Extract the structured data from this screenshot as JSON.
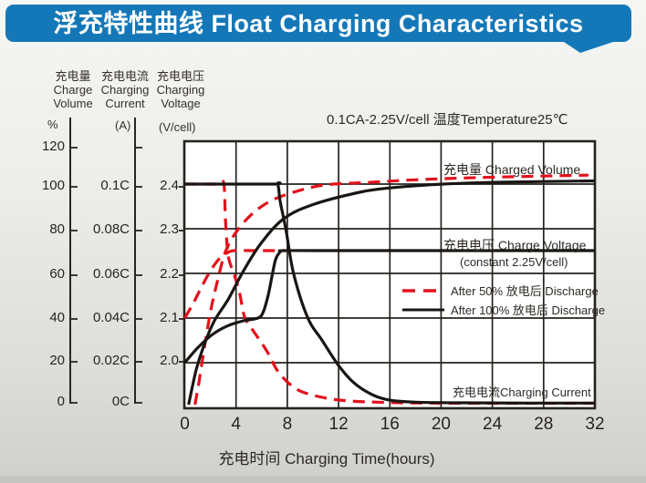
{
  "title": "浮充特性曲线 Float Charging Characteristics",
  "axis_headers": {
    "volume": {
      "l1": "充电量",
      "l2": "Charge",
      "l3": "Volume",
      "unit": "%"
    },
    "current": {
      "l1": "充电电流",
      "l2": "Charging",
      "l3": "Current",
      "unit": "(A)"
    },
    "voltage": {
      "l1": "充电电压",
      "l2": "Charging",
      "l3": "Voltage",
      "unit": "(V/cell)"
    }
  },
  "colors": {
    "accent_blue": "#1478b8",
    "curve_red": "#e3101c",
    "curve_black": "#191613"
  },
  "chart_data": {
    "type": "line",
    "title": "浮充特性曲线 Float Charging Characteristics",
    "condition": "0.1CA-2.25V/cell  温度Temperature25℃",
    "x": {
      "label": "充电时间 Charging Time(hours)",
      "unit": "hours",
      "range": [
        0,
        32
      ],
      "ticks": [
        "0",
        "4",
        "8",
        "12",
        "16",
        "20",
        "24",
        "28",
        "32"
      ]
    },
    "y_axes": {
      "volume": {
        "label": "充电量 Charge Volume",
        "unit": "%",
        "ticks": [
          "120",
          "100",
          "80",
          "60",
          "40",
          "20",
          "0"
        ]
      },
      "current": {
        "label": "充电电流 Charging Current",
        "unit": "A",
        "ticks": [
          "0.1C",
          "0.08C",
          "0.06C",
          "0.04C",
          "0.02C",
          "0C"
        ]
      },
      "voltage": {
        "label": "充电电压 Charging Voltage",
        "unit": "V/cell",
        "ticks": [
          "2.4",
          "2.3",
          "2.2",
          "2.1",
          "2.0"
        ],
        "gridline_values": [
          2.4,
          2.3,
          2.2,
          2.1,
          2.0
        ]
      }
    },
    "annotations": {
      "charged_volume": "充电量 Charged Volume",
      "charge_voltage": "充电电压 Charge Voltage",
      "charge_voltage_sub": "(constant 2.25V/cell)",
      "charging_current": "充电电流Charging Current"
    },
    "legend": [
      {
        "label": "After 50%  放电后 Discharge",
        "style": "dashed-red"
      },
      {
        "label": "After 100%  放电后 Discharge",
        "style": "solid-black"
      }
    ],
    "series": [
      {
        "name": "Charged Volume - After 50% discharge",
        "axis": "volume",
        "style": "dashed-red",
        "points": [
          [
            0.8,
            0
          ],
          [
            1.1,
            10
          ],
          [
            1.5,
            25
          ],
          [
            2.0,
            42
          ],
          [
            2.5,
            55
          ],
          [
            3.2,
            70
          ],
          [
            4.2,
            80
          ],
          [
            5.5,
            88
          ],
          [
            7,
            93.5
          ],
          [
            9,
            97.5
          ],
          [
            11,
            100
          ],
          [
            14,
            101
          ],
          [
            18,
            102.3
          ],
          [
            23,
            103.3
          ],
          [
            28,
            104
          ],
          [
            31.5,
            104.4
          ]
        ]
      },
      {
        "name": "Charged Volume - After 100% discharge",
        "axis": "volume",
        "style": "solid-black",
        "points": [
          [
            0.3,
            0
          ],
          [
            0.9,
            16
          ],
          [
            1.5,
            27
          ],
          [
            2.3,
            38
          ],
          [
            3.4,
            48
          ],
          [
            4.5,
            60
          ],
          [
            5.9,
            73
          ],
          [
            7.7,
            84.5
          ],
          [
            10,
            91
          ],
          [
            13.8,
            96.8
          ],
          [
            16.4,
            98.8
          ],
          [
            20,
            100.3
          ],
          [
            25,
            101.2
          ],
          [
            32,
            101.8
          ]
        ]
      },
      {
        "name": "Charge Voltage - After 50% discharge",
        "axis": "voltage",
        "style": "dashed-red",
        "points": [
          [
            0,
            2.1
          ],
          [
            0.7,
            2.135
          ],
          [
            1.4,
            2.175
          ],
          [
            2.1,
            2.21
          ],
          [
            2.7,
            2.233
          ],
          [
            3.3,
            2.246
          ],
          [
            3.9,
            2.251
          ],
          [
            5.5,
            2.251
          ],
          [
            7.8,
            2.251
          ]
        ]
      },
      {
        "name": "Charge Voltage - After 100% discharge",
        "axis": "voltage",
        "style": "solid-black",
        "points": [
          [
            0,
            2.0
          ],
          [
            1,
            2.033
          ],
          [
            2.1,
            2.062
          ],
          [
            3.3,
            2.082
          ],
          [
            4.6,
            2.094
          ],
          [
            5.7,
            2.1
          ],
          [
            6.1,
            2.112
          ],
          [
            6.5,
            2.15
          ],
          [
            6.85,
            2.2
          ],
          [
            7.1,
            2.232
          ],
          [
            7.45,
            2.248
          ],
          [
            7.8,
            2.251
          ],
          [
            12,
            2.251
          ],
          [
            32,
            2.251
          ]
        ]
      },
      {
        "name": "Charging Current - After 50% discharge",
        "axis": "current",
        "style": "dashed-red",
        "points": [
          [
            0,
            0.1
          ],
          [
            2.6,
            0.1
          ],
          [
            3.05,
            0.1
          ],
          [
            3.18,
            0.083
          ],
          [
            3.4,
            0.067
          ],
          [
            3.85,
            0.059
          ],
          [
            4.3,
            0.0497
          ],
          [
            4.65,
            0.0398
          ],
          [
            5.2,
            0.0345
          ],
          [
            6.4,
            0.024
          ],
          [
            7.3,
            0.0145
          ],
          [
            8.5,
            0.0075
          ],
          [
            9.8,
            0.0042
          ],
          [
            12,
            0.0017
          ],
          [
            15,
            0.0007
          ],
          [
            19,
            0.0003
          ],
          [
            25,
            0.0002
          ],
          [
            32,
            0.0002
          ]
        ]
      },
      {
        "name": "Charging Current - After 100% discharge",
        "axis": "current",
        "style": "solid-black",
        "points": [
          [
            0,
            0.1
          ],
          [
            6.8,
            0.1
          ],
          [
            7.25,
            0.1
          ],
          [
            7.45,
            0.092
          ],
          [
            7.9,
            0.079
          ],
          [
            8.5,
            0.059
          ],
          [
            9.6,
            0.039
          ],
          [
            10.7,
            0.029
          ],
          [
            12,
            0.0174
          ],
          [
            13.2,
            0.0095
          ],
          [
            14.6,
            0.0042
          ],
          [
            16,
            0.0016
          ],
          [
            18,
            0.0007
          ],
          [
            22,
            0.0004
          ],
          [
            27,
            0.0003
          ],
          [
            32,
            0.0003
          ]
        ]
      }
    ]
  }
}
